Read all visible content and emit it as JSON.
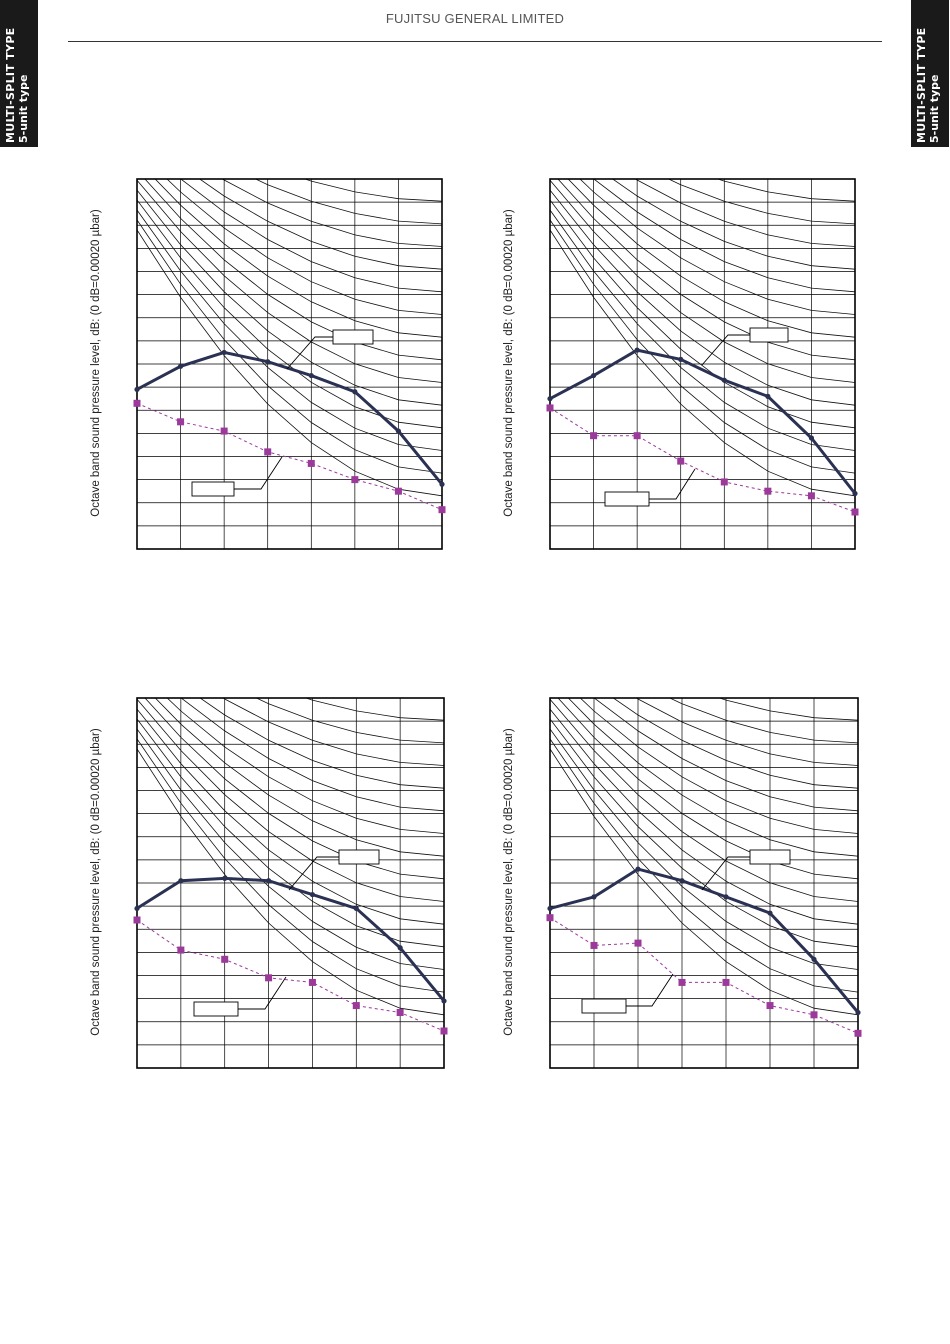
{
  "header": {
    "company": "FUJITSU GENERAL LIMITED"
  },
  "side_tab": {
    "line1": "MULTI-SPLIT TYPE",
    "line2": "5-unit type"
  },
  "colors": {
    "series_1": "#2a3152",
    "series_2": "#9b3a9b",
    "grid": "#000000"
  },
  "chart_data": [
    {
      "type": "line",
      "ylabel": "Octave band sound pressure level, dB: (0 dB=0.00020 µbar)",
      "x": [
        1,
        2,
        3,
        4,
        5,
        6,
        7,
        8
      ],
      "ylim": [
        0,
        16
      ],
      "grid": true,
      "series": [
        {
          "values": [
            6.9,
            7.9,
            8.5,
            8.1,
            7.5,
            6.8,
            5.1,
            2.8
          ],
          "style": "solid"
        },
        {
          "values": [
            6.3,
            5.5,
            5.1,
            4.2,
            3.7,
            3.0,
            2.5,
            1.7
          ],
          "style": "dashed-square"
        }
      ]
    },
    {
      "type": "line",
      "ylabel": "Octave band sound pressure level, dB: (0 dB=0.00020 µbar)",
      "x": [
        1,
        2,
        3,
        4,
        5,
        6,
        7,
        8
      ],
      "ylim": [
        0,
        16
      ],
      "grid": true,
      "series": [
        {
          "values": [
            6.5,
            7.5,
            8.6,
            8.2,
            7.3,
            6.6,
            4.8,
            2.4
          ],
          "style": "solid"
        },
        {
          "values": [
            6.1,
            4.9,
            4.9,
            3.8,
            2.9,
            2.5,
            2.3,
            1.6
          ],
          "style": "dashed-square"
        }
      ]
    },
    {
      "type": "line",
      "ylabel": "Octave band sound pressure level, dB: (0 dB=0.00020 µbar)",
      "x": [
        1,
        2,
        3,
        4,
        5,
        6,
        7,
        8
      ],
      "ylim": [
        0,
        16
      ],
      "grid": true,
      "series": [
        {
          "values": [
            6.9,
            8.1,
            8.2,
            8.1,
            7.5,
            6.9,
            5.2,
            2.9
          ],
          "style": "solid"
        },
        {
          "values": [
            6.4,
            5.1,
            4.7,
            3.9,
            3.7,
            2.7,
            2.4,
            1.6
          ],
          "style": "dashed-square"
        }
      ]
    },
    {
      "type": "line",
      "ylabel": "Octave band sound pressure level, dB: (0 dB=0.00020 µbar)",
      "x": [
        1,
        2,
        3,
        4,
        5,
        6,
        7,
        8
      ],
      "ylim": [
        0,
        16
      ],
      "grid": true,
      "series": [
        {
          "values": [
            6.9,
            7.4,
            8.6,
            8.1,
            7.4,
            6.7,
            4.7,
            2.4
          ],
          "style": "solid"
        },
        {
          "values": [
            6.5,
            5.3,
            5.4,
            3.7,
            3.7,
            2.7,
            2.3,
            1.5
          ],
          "style": "dashed-square"
        }
      ]
    }
  ]
}
